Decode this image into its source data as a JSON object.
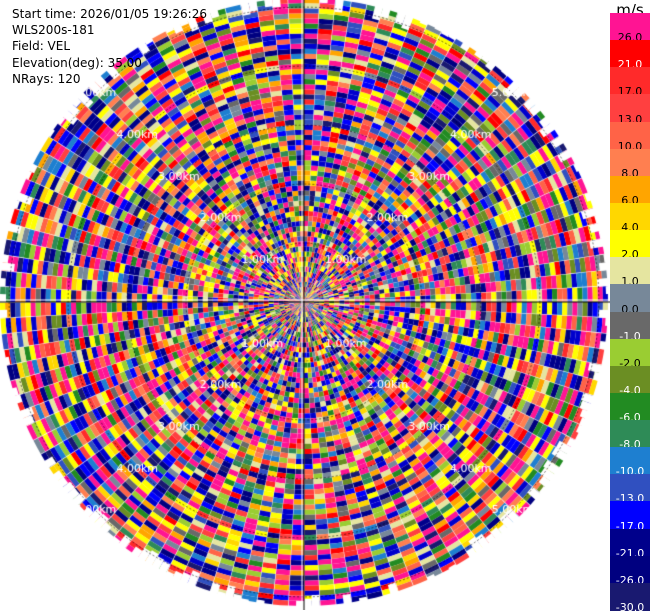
{
  "info": {
    "start_time": "Start time: 2026/01/05 19:26:26",
    "station": "WLS200s-181",
    "field": "Field: VEL",
    "elevation": "Elevation(deg): 35.00",
    "nrays": "NRays: 120"
  },
  "chart_data": {
    "type": "ppi",
    "field": "VEL",
    "nrays": 120,
    "range_rings_km": [
      1.0,
      2.0,
      3.0,
      4.0,
      5.0
    ],
    "range_ring_labels": [
      "1.00km",
      "2.00km",
      "3.00km",
      "4.00km",
      "5.00km"
    ],
    "max_range_km": 5.0,
    "colorbar": {
      "unit": "m/s",
      "levels": [
        {
          "label": "26.0",
          "color": "#ff1493"
        },
        {
          "label": "21.0",
          "color": "#ff0000"
        },
        {
          "label": "17.0",
          "color": "#ff2a2a"
        },
        {
          "label": "13.0",
          "color": "#ff4040"
        },
        {
          "label": "10.0",
          "color": "#ff6347"
        },
        {
          "label": "8.0",
          "color": "#ff7f50"
        },
        {
          "label": "6.0",
          "color": "#ffa500"
        },
        {
          "label": "4.0",
          "color": "#ffd700"
        },
        {
          "label": "2.0",
          "color": "#ffff00"
        },
        {
          "label": "1.0",
          "color": "#e5e5a0"
        },
        {
          "label": "0.0",
          "color": "#778899"
        },
        {
          "label": "-1.0",
          "color": "#696969"
        },
        {
          "label": "-2.0",
          "color": "#9acd32"
        },
        {
          "label": "-4.0",
          "color": "#6b8e23"
        },
        {
          "label": "-6.0",
          "color": "#228b22"
        },
        {
          "label": "-8.0",
          "color": "#2e8b57"
        },
        {
          "label": "-10.0",
          "color": "#1e7fd0"
        },
        {
          "label": "-13.0",
          "color": "#3050c0"
        },
        {
          "label": "-17.0",
          "color": "#0000ff"
        },
        {
          "label": "-21.0",
          "color": "#00008b"
        },
        {
          "label": "-26.0",
          "color": "#000080"
        },
        {
          "label": "-30.0",
          "color": "#191970"
        }
      ]
    }
  }
}
